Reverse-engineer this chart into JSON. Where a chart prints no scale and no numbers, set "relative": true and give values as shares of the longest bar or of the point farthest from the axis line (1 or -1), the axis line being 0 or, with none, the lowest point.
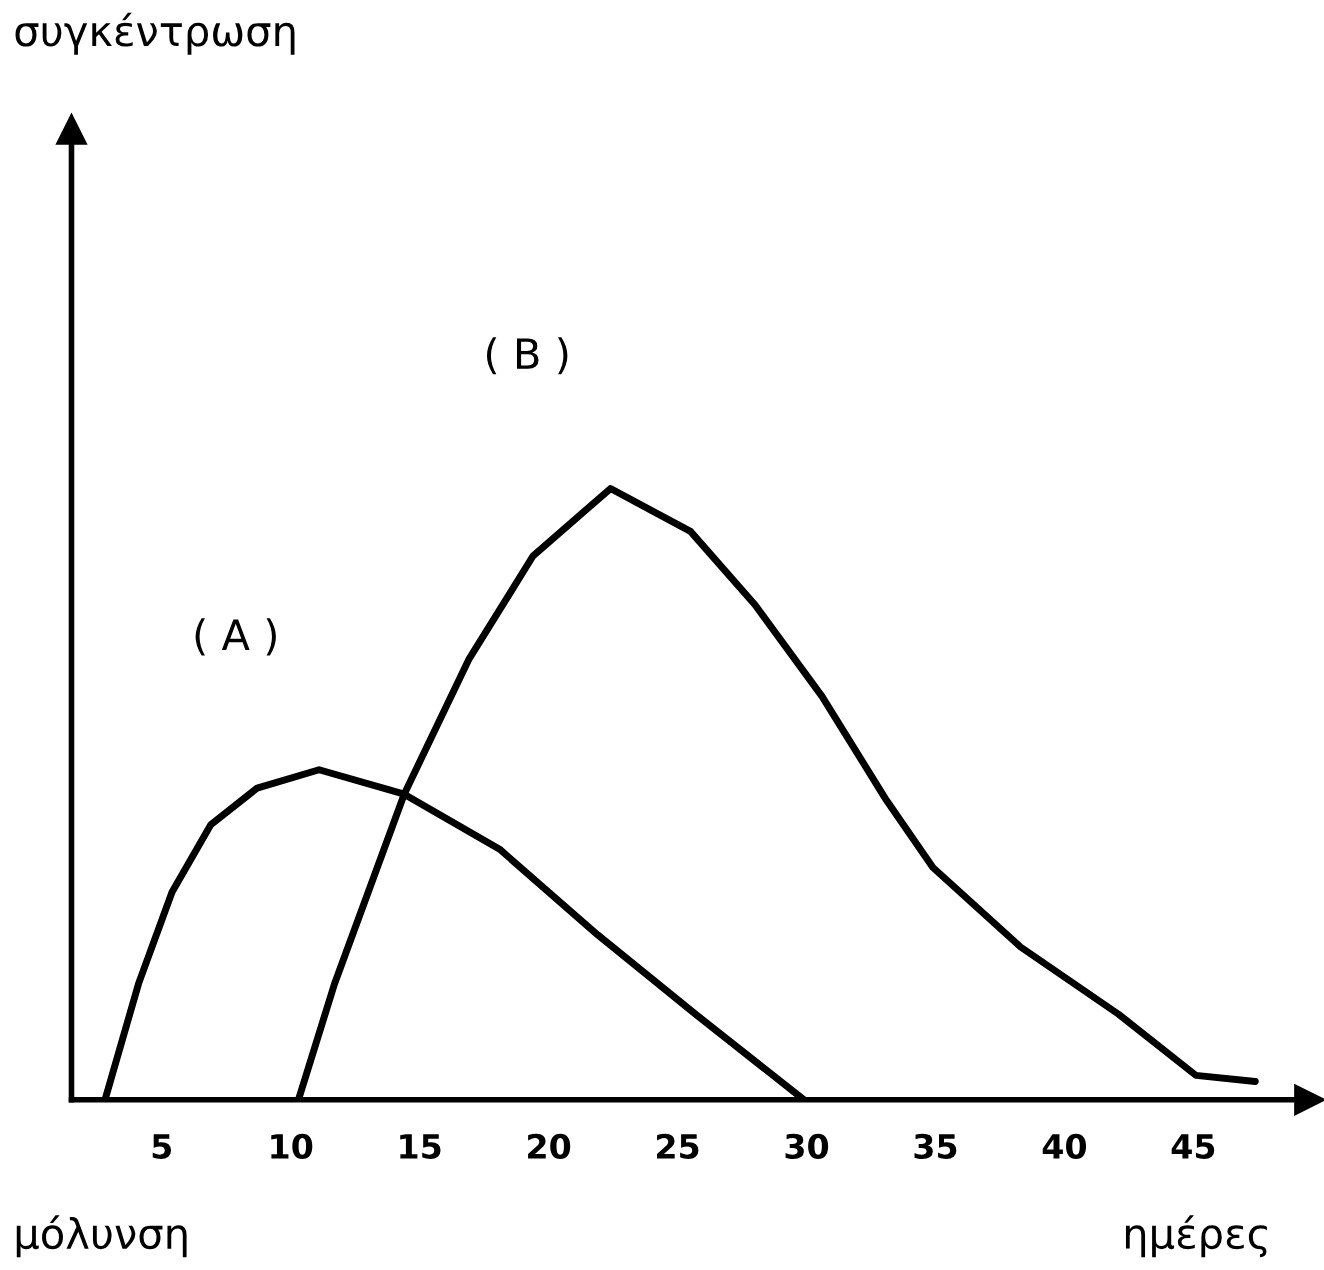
{
  "chart_data": {
    "type": "line",
    "relative": true,
    "xlabel": "ημέρες",
    "annotations": [
      "συγκέντρωση",
      "μόλυνση"
    ],
    "xlim": [
      1.5,
      49.5
    ],
    "xticks": [
      5,
      10,
      15,
      20,
      25,
      30,
      35,
      40,
      45
    ],
    "grid": false,
    "legend": false,
    "marker": "none",
    "line_style": "solid",
    "series": [
      {
        "name": "( A )",
        "color": "#000000",
        "x": [
          2.8,
          4.1,
          5.4,
          6.9,
          8.7,
          11.1,
          14.4,
          18.1,
          21.9,
          25.7,
          29.9
        ],
        "values": [
          0,
          0.19,
          0.34,
          0.45,
          0.51,
          0.54,
          0.5,
          0.41,
          0.27,
          0.14,
          0
        ]
      },
      {
        "name": "( B )",
        "color": "#000000",
        "x": [
          10.3,
          11.7,
          14.4,
          16.9,
          19.4,
          22.4,
          25.5,
          28.0,
          30.6,
          33.1,
          34.9,
          38.3,
          42.1,
          45.1,
          47.4
        ],
        "values": [
          0,
          0.19,
          0.5,
          0.72,
          0.89,
          1,
          0.93,
          0.81,
          0.66,
          0.49,
          0.38,
          0.25,
          0.14,
          0.04,
          0.03
        ]
      }
    ]
  }
}
